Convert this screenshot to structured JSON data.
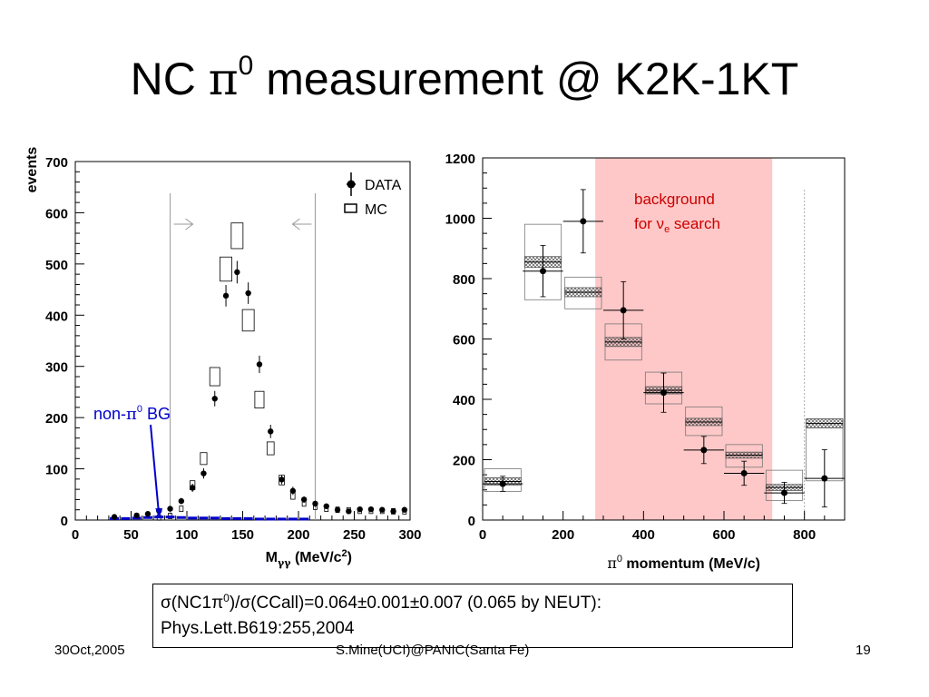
{
  "slide": {
    "title_prefix": "NC ",
    "title_pi": "π",
    "title_sup": "0",
    "title_suffix": " measurement @ K2K-1KT"
  },
  "result": {
    "line1_a": "σ(NC1π",
    "line1_sup": "0",
    "line1_b": ")/σ(CCall)=0.064±0.001±0.007 (0.065 by NEUT):",
    "line2": "Phys.Lett.B619:255,2004"
  },
  "footer": {
    "date": "30Oct,2005",
    "center": "S.Mine(UCI)@PANIC(Santa Fe)",
    "page": "19"
  },
  "colors": {
    "data": "#000000",
    "mc": "#000000",
    "non_pi0_bg": "#0000cc",
    "annotation_blue": "#0000cc",
    "background_band": "#ffc8c8",
    "background_text": "#cc0000"
  },
  "chart_data": [
    {
      "type": "scatter",
      "title": "",
      "xlabel": "Mγγ (MeV/c²)",
      "ylabel": "events",
      "xlim": [
        0,
        300
      ],
      "ylim": [
        0,
        700
      ],
      "xticks": [
        0,
        50,
        100,
        150,
        200,
        250,
        300
      ],
      "yticks": [
        0,
        100,
        200,
        300,
        400,
        500,
        600,
        700
      ],
      "legend": {
        "placement": "top-right",
        "entries": [
          "DATA",
          "MC"
        ]
      },
      "selection_cut": {
        "low": 85,
        "high": 215
      },
      "annotation": {
        "text": "non-π⁰ BG",
        "target_x": 75,
        "target_y": 5
      },
      "series": [
        {
          "name": "DATA",
          "x": [
            35,
            55,
            65,
            75,
            85,
            95,
            105,
            115,
            125,
            135,
            145,
            155,
            165,
            175,
            185,
            195,
            205,
            215,
            225,
            235,
            245,
            255,
            265,
            275,
            285,
            295
          ],
          "values": [
            6,
            9,
            12,
            18,
            22,
            37,
            63,
            91,
            237,
            438,
            484,
            443,
            304,
            173,
            79,
            57,
            40,
            32,
            27,
            20,
            17,
            21,
            21,
            20,
            17,
            20
          ],
          "errors": [
            3,
            3,
            4,
            5,
            5,
            6,
            8,
            10,
            15,
            21,
            22,
            21,
            17,
            13,
            9,
            8,
            6,
            6,
            5,
            5,
            4,
            5,
            5,
            5,
            4,
            5
          ]
        },
        {
          "name": "MC",
          "x": [
            75,
            85,
            95,
            105,
            115,
            125,
            135,
            145,
            155,
            165,
            175,
            185,
            195,
            205,
            215,
            225,
            235,
            245,
            255,
            265,
            275,
            285,
            295
          ],
          "values": [
            5,
            8,
            22,
            68,
            120,
            280,
            490,
            555,
            390,
            235,
            140,
            78,
            48,
            33,
            26,
            22,
            20,
            19,
            18,
            18,
            18,
            17,
            17
          ]
        },
        {
          "name": "non-π⁰ BG",
          "x": [
            35,
            45,
            55,
            65,
            75,
            85,
            95,
            105,
            115,
            125,
            135,
            145,
            155,
            165,
            175,
            185,
            195,
            205
          ],
          "values": [
            2,
            2,
            3,
            4,
            5,
            5,
            4,
            3,
            3,
            3,
            2,
            2,
            2,
            1,
            1,
            1,
            1,
            1
          ]
        }
      ]
    },
    {
      "type": "scatter",
      "title": "",
      "xlabel": "π⁰ momentum (MeV/c)",
      "ylabel": "",
      "xlim": [
        0,
        900
      ],
      "ylim": [
        0,
        1200
      ],
      "xticks": [
        0,
        200,
        400,
        600,
        800
      ],
      "yticks": [
        0,
        200,
        400,
        600,
        800,
        1000,
        1200
      ],
      "band": {
        "x": [
          280,
          720
        ],
        "label_line1": "background",
        "label_line2_a": "for ν",
        "label_line2_sub": "e",
        "label_line2_b": " search"
      },
      "dashed_line_x": 800,
      "series": [
        {
          "name": "DATA",
          "x": [
            50,
            150,
            250,
            350,
            450,
            550,
            650,
            750,
            850
          ],
          "xerr": [
            50,
            50,
            50,
            50,
            50,
            50,
            50,
            50,
            50
          ],
          "values": [
            120,
            825,
            990,
            695,
            422,
            232,
            155,
            90,
            138
          ],
          "errors": [
            25,
            85,
            105,
            95,
            65,
            45,
            40,
            35,
            95
          ]
        },
        {
          "name": "MC",
          "x": [
            50,
            150,
            250,
            350,
            450,
            550,
            650,
            750,
            850
          ],
          "values": [
            128,
            855,
            755,
            590,
            430,
            325,
            215,
            108,
            320
          ],
          "syst": [
            12,
            18,
            15,
            15,
            12,
            12,
            10,
            10,
            15
          ],
          "box_low": [
            95,
            730,
            700,
            530,
            385,
            280,
            175,
            65,
            130
          ],
          "box_high": [
            170,
            980,
            805,
            650,
            490,
            375,
            250,
            165,
            335
          ]
        }
      ]
    }
  ]
}
